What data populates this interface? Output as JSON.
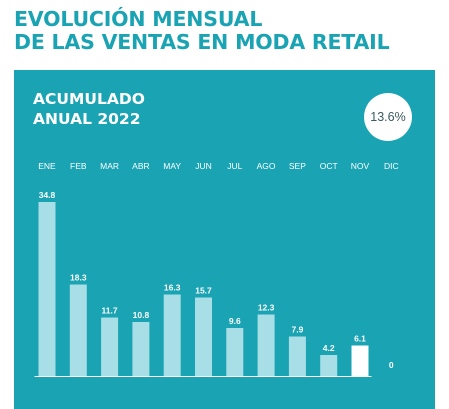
{
  "title": {
    "line1": "EVOLUCIÓN MENSUAL",
    "line2": "DE LAS VENTAS EN MODA RETAIL"
  },
  "panel": {
    "subtitle_line1": "ACUMULADO",
    "subtitle_line2": "ANUAL 2022",
    "badge_value": "13.6%"
  },
  "colors": {
    "panel_background": "#1aa3b3",
    "title_text": "#1aa3b3",
    "bar": "#a8dee6",
    "highlight_bar": "#ffffff",
    "axis": "#ffffff"
  },
  "chart_data": {
    "type": "bar",
    "title": "EVOLUCIÓN MENSUAL DE LAS VENTAS EN MODA RETAIL",
    "subtitle": "ACUMULADO ANUAL 2022",
    "categories": [
      "ENE",
      "FEB",
      "MAR",
      "ABR",
      "MAY",
      "JUN",
      "JUL",
      "AGO",
      "SEP",
      "OCT",
      "NOV",
      "DIC"
    ],
    "values": [
      34.8,
      18.3,
      11.7,
      10.8,
      16.3,
      15.7,
      9.6,
      12.3,
      7.9,
      4.2,
      6.1,
      0
    ],
    "value_labels": [
      "34.8",
      "18.3",
      "11.7",
      "10.8",
      "16.3",
      "15.7",
      "9.6",
      "12.3",
      "7.9",
      "4.2",
      "6.1",
      "0"
    ],
    "highlighted_category": "NOV",
    "xlabel": "",
    "ylabel": "",
    "ylim": [
      0,
      34.8
    ],
    "grid": false,
    "legend": "none",
    "category_labels_position": "top"
  }
}
